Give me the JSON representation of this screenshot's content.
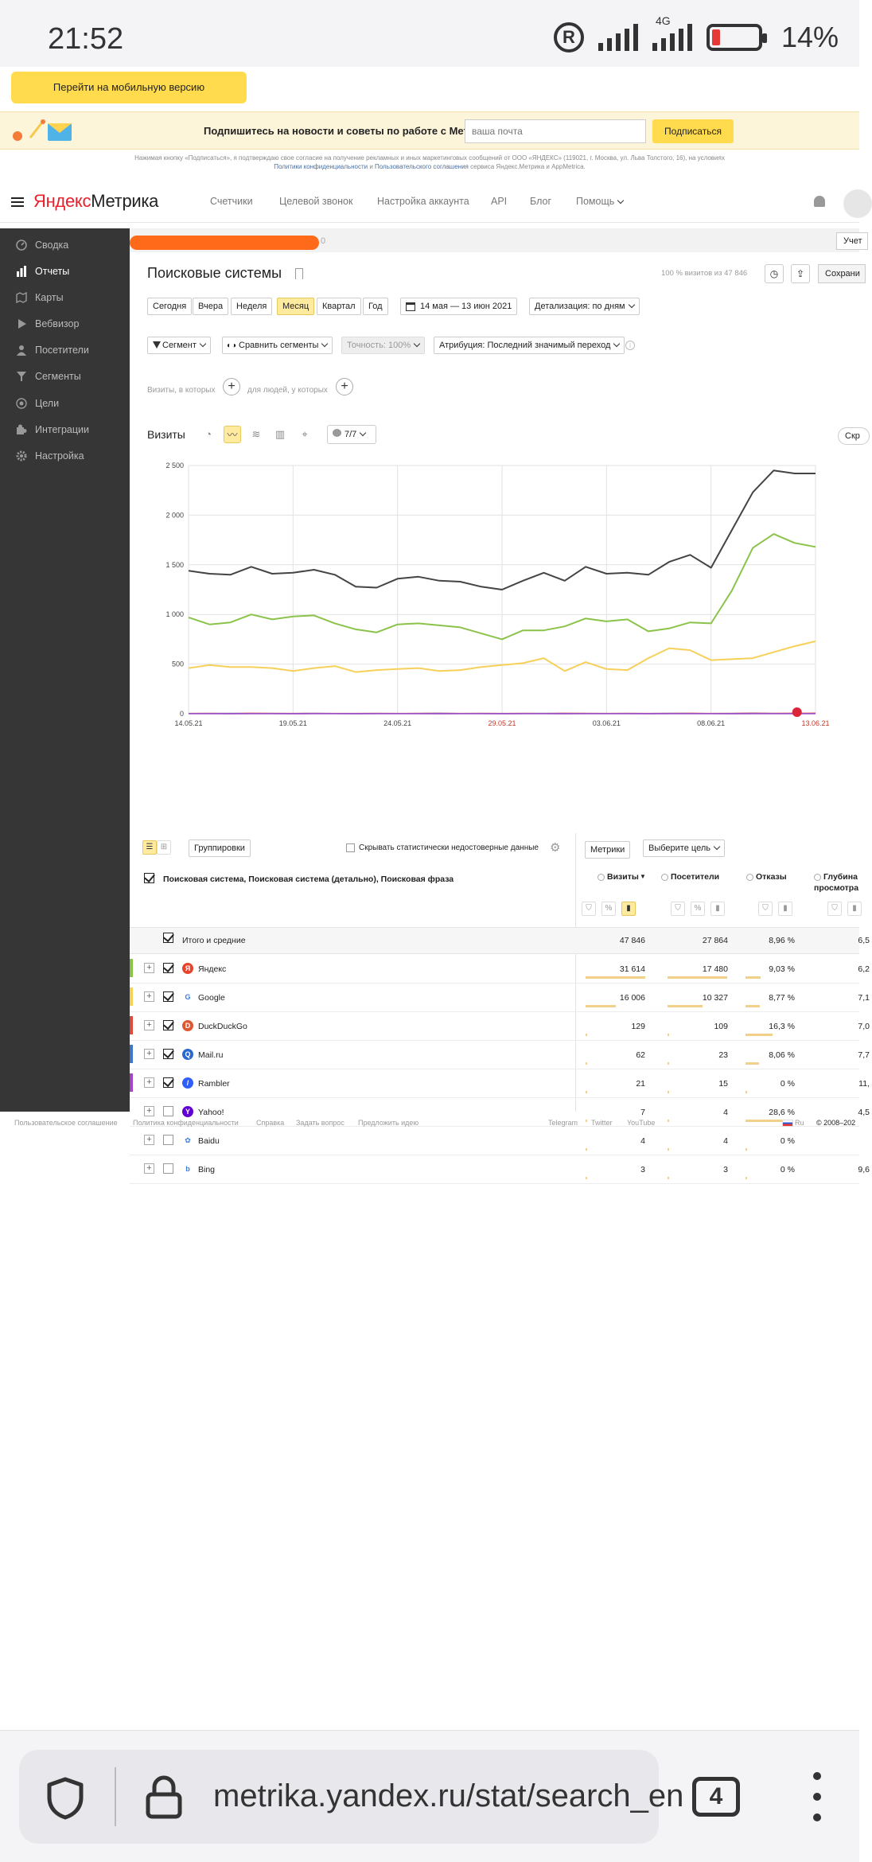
{
  "status_bar": {
    "time": "21:52",
    "network": "4G",
    "battery": "14%"
  },
  "mobile_version_button": "Перейти на мобильную версию",
  "subscribe": {
    "text": "Подпишитесь на новости и советы по работе с Метрикой",
    "email_placeholder": "ваша почта",
    "button": "Подписаться",
    "legal_line1": "Нажимая кнопку «Подписаться», я подтверждаю свое согласие на получение рекламных и иных маркетинговых сообщений от ООО «ЯНДЕКС» (119021, г. Москва, ул. Льва Толстого, 16), на условиях",
    "legal_link1": "Политики конфиденциальности",
    "legal_and": "и",
    "legal_link2": "Пользовательского соглашения",
    "legal_tail": "сервиса Яндекс.Метрика и AppMetrica."
  },
  "header": {
    "logo_y": "Яндекс",
    "logo_rest": "Метрика",
    "nav": [
      "Счетчики",
      "Целевой звонок",
      "Настройка аккаунта",
      "API",
      "Блог",
      "Помощь"
    ]
  },
  "sidebar": {
    "items": [
      {
        "label": "Сводка",
        "icon": "gauge-icon"
      },
      {
        "label": "Отчеты",
        "icon": "bar-chart-icon",
        "active": true
      },
      {
        "label": "Карты",
        "icon": "map-icon"
      },
      {
        "label": "Вебвизор",
        "icon": "play-icon"
      },
      {
        "label": "Посетители",
        "icon": "users-icon"
      },
      {
        "label": "Сегменты",
        "icon": "filter-icon"
      },
      {
        "label": "Цели",
        "icon": "target-icon"
      },
      {
        "label": "Интеграции",
        "icon": "puzzle-icon"
      },
      {
        "label": "Настройка",
        "icon": "gear-icon"
      }
    ]
  },
  "crumb": {
    "zero": "0",
    "account_button": "Учет"
  },
  "report": {
    "title": "Поисковые системы",
    "visits_share": "100 % визитов из 47 846",
    "save_button": "Сохрани",
    "periods": [
      "Сегодня",
      "Вчера",
      "Неделя",
      "Месяц",
      "Квартал",
      "Год"
    ],
    "active_period": "Месяц",
    "date_range": "14 мая — 13 июн 2021",
    "detalization": "Детализация: по дням",
    "segment": "Сегмент",
    "compare": "Сравнить сегменты",
    "accuracy": "Точность: 100%",
    "attribution": "Атрибуция: Последний значимый переход",
    "visits_where": "Визиты, в которых",
    "people_where": "для людей, у которых",
    "chart_title": "Визиты",
    "series_count": "7/7",
    "hide_button": "Скр"
  },
  "chart_data": {
    "type": "line",
    "x": [
      "14.05.21",
      "15.05.21",
      "16.05.21",
      "17.05.21",
      "18.05.21",
      "19.05.21",
      "20.05.21",
      "21.05.21",
      "22.05.21",
      "23.05.21",
      "24.05.21",
      "25.05.21",
      "26.05.21",
      "27.05.21",
      "28.05.21",
      "29.05.21",
      "30.05.21",
      "31.05.21",
      "01.06.21",
      "02.06.21",
      "03.06.21",
      "04.06.21",
      "05.06.21",
      "06.06.21",
      "07.06.21",
      "08.06.21",
      "09.06.21",
      "10.06.21",
      "11.06.21",
      "12.06.21",
      "13.06.21"
    ],
    "tick_labels": [
      "14.05.21",
      "19.05.21",
      "24.05.21",
      "29.05.21",
      "03.06.21",
      "08.06.21",
      "13.06.21"
    ],
    "weekend_ticks": [
      "29.05.21",
      "13.06.21"
    ],
    "ylim": [
      0,
      2500
    ],
    "yticks": [
      "0",
      "500",
      "1 000",
      "1 500",
      "2 000",
      "2 500"
    ],
    "series": [
      {
        "color": "#444444",
        "values": [
          1440,
          1410,
          1400,
          1480,
          1410,
          1420,
          1450,
          1400,
          1280,
          1270,
          1360,
          1380,
          1340,
          1330,
          1280,
          1250,
          1340,
          1420,
          1340,
          1480,
          1410,
          1420,
          1400,
          1530,
          1600,
          1470,
          1850,
          2230,
          2450,
          2420,
          2420
        ]
      },
      {
        "color": "#8bc34a",
        "values": [
          970,
          900,
          920,
          1000,
          950,
          980,
          990,
          910,
          850,
          820,
          900,
          910,
          890,
          870,
          810,
          750,
          840,
          840,
          880,
          960,
          930,
          950,
          830,
          860,
          920,
          910,
          1240,
          1670,
          1810,
          1720,
          1680
        ]
      },
      {
        "color": "#f7d05a",
        "values": [
          460,
          490,
          470,
          470,
          460,
          430,
          460,
          480,
          420,
          440,
          450,
          460,
          430,
          440,
          470,
          490,
          510,
          560,
          430,
          520,
          450,
          440,
          560,
          660,
          640,
          540,
          550,
          560,
          620,
          680,
          730
        ]
      },
      {
        "color": "#e04a3a",
        "values": [
          3,
          4,
          3,
          5,
          4,
          3,
          4,
          3,
          3,
          4,
          3,
          4,
          5,
          3,
          4,
          3,
          4,
          3,
          5,
          4,
          3,
          4,
          3,
          4,
          5,
          3,
          4,
          6,
          4,
          5,
          6
        ]
      },
      {
        "color": "#3f78c8",
        "values": [
          2,
          2,
          3,
          2,
          2,
          2,
          3,
          2,
          2,
          2,
          2,
          2,
          3,
          2,
          2,
          2,
          2,
          3,
          2,
          2,
          2,
          2,
          2,
          3,
          2,
          2,
          2,
          3,
          2,
          2,
          2
        ]
      },
      {
        "color": "#a345c6",
        "values": [
          1,
          1,
          0,
          1,
          1,
          0,
          1,
          1,
          0,
          1,
          1,
          1,
          0,
          1,
          1,
          0,
          1,
          1,
          0,
          1,
          1,
          1,
          0,
          1,
          1,
          1,
          0,
          1,
          1,
          1,
          1
        ]
      }
    ]
  },
  "table": {
    "groupings_button": "Группировки",
    "hide_unreliable": "Скрывать статистически недостоверные данные",
    "metrics_button": "Метрики",
    "goal_button": "Выберите цель",
    "dimension_header": "Поисковая система, Поисковая система (детально), Поисковая фраза",
    "col_visits": "Визиты",
    "col_visitors": "Посетители",
    "col_bounces": "Отказы",
    "col_depth_1": "Глубина",
    "col_depth_2": "просмотра",
    "totals": {
      "label": "Итого и средние",
      "visits": "47 846",
      "visitors": "27 864",
      "bounce": "8,96 %",
      "depth": "6,5"
    },
    "rows": [
      {
        "name": "Яндекс",
        "visits": "31 614",
        "visitors": "17 480",
        "bounce": "9,03 %",
        "depth": "6,2",
        "checked": true,
        "color": "#8bc34a",
        "icon": "yandex-icon",
        "glyph": "Я",
        "icon_bg": "#e8432c"
      },
      {
        "name": "Google",
        "visits": "16 006",
        "visitors": "10 327",
        "bounce": "8,77 %",
        "depth": "7,1",
        "checked": true,
        "color": "#f7d05a",
        "icon": "google-icon",
        "glyph": "G",
        "icon_bg": "#ffffff"
      },
      {
        "name": "DuckDuckGo",
        "visits": "129",
        "visitors": "109",
        "bounce": "16,3 %",
        "depth": "7,0",
        "checked": true,
        "color": "#e04a3a",
        "icon": "duckduckgo-icon",
        "glyph": "D",
        "icon_bg": "#de5833"
      },
      {
        "name": "Mail.ru",
        "visits": "62",
        "visitors": "23",
        "bounce": "8,06 %",
        "depth": "7,7",
        "checked": true,
        "color": "#3f78c8",
        "icon": "mailru-icon",
        "glyph": "Q",
        "icon_bg": "#2a68d1"
      },
      {
        "name": "Rambler",
        "visits": "21",
        "visitors": "15",
        "bounce": "0 %",
        "depth": "11,",
        "checked": true,
        "color": "#a345c6",
        "icon": "rambler-icon",
        "glyph": "/",
        "icon_bg": "#315efb"
      },
      {
        "name": "Yahoo!",
        "visits": "7",
        "visitors": "4",
        "bounce": "28,6 %",
        "depth": "4,5",
        "checked": false,
        "color": "",
        "icon": "yahoo-icon",
        "glyph": "Y",
        "icon_bg": "#6001d2"
      },
      {
        "name": "Baidu",
        "visits": "4",
        "visitors": "4",
        "bounce": "0 %",
        "depth": "",
        "checked": false,
        "color": "",
        "icon": "baidu-icon",
        "glyph": "✿",
        "icon_bg": "#ffffff"
      },
      {
        "name": "Bing",
        "visits": "3",
        "visitors": "3",
        "bounce": "0 %",
        "depth": "9,6",
        "checked": false,
        "color": "",
        "icon": "bing-icon",
        "glyph": "b",
        "icon_bg": "#ffffff"
      }
    ]
  },
  "footer": {
    "links": [
      "Пользовательское соглашение",
      "Политика конфиденциальности",
      "Справка",
      "Задать вопрос",
      "Предложить идею"
    ],
    "social": [
      "Telegram",
      "Twitter",
      "YouTube"
    ],
    "lang": "Ru",
    "copyright": "© 2008–202"
  },
  "browser": {
    "url": "metrika.yandex.ru/stat/search_en",
    "tabs_count": "4"
  }
}
